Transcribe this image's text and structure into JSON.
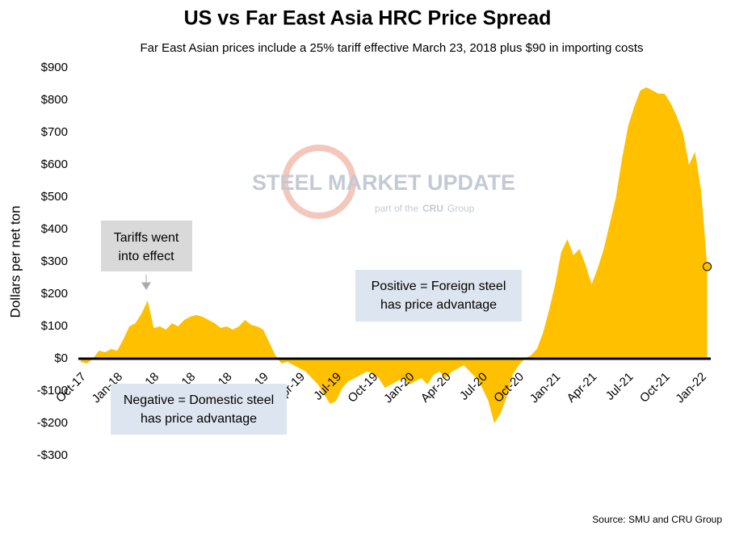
{
  "chart_data": {
    "type": "area",
    "title": "US vs Far East Asia HRC Price Spread",
    "subtitle": "Far East Asian prices include a 25% tariff effective March 23, 2018 plus $90 in importing costs",
    "y_label": "Dollars per net ton",
    "source": "Source: SMU and CRU Group",
    "annotations": [
      "Tariffs went",
      "into effect",
      "Positive = Foreign steel",
      "has price advantage",
      "Negative = Domestic steel",
      "has price advantage"
    ],
    "watermark": [
      "STEEL MARKET UPDATE",
      "part of the",
      "CRU",
      "Group"
    ],
    "color": "#ffc000",
    "categories": [
      "Oct-17",
      null,
      null,
      null,
      null,
      null,
      "Jan-18",
      null,
      null,
      null,
      null,
      null,
      "Apr-18",
      null,
      null,
      null,
      null,
      null,
      "Jul-18",
      null,
      null,
      null,
      null,
      null,
      "Oct-18",
      null,
      null,
      null,
      null,
      null,
      "Jan-19",
      null,
      null,
      null,
      null,
      null,
      "Apr-19",
      null,
      null,
      null,
      null,
      null,
      "Jul-19",
      null,
      null,
      null,
      null,
      null,
      "Oct-19",
      null,
      null,
      null,
      null,
      null,
      "Jan-20",
      null,
      null,
      null,
      null,
      null,
      "Apr-20",
      null,
      null,
      null,
      null,
      null,
      "Jul-20",
      null,
      null,
      null,
      null,
      null,
      "Oct-20",
      null,
      null,
      null,
      null,
      null,
      "Jan-21",
      null,
      null,
      null,
      null,
      null,
      "Apr-21",
      null,
      null,
      null,
      null,
      null,
      "Jul-21",
      null,
      null,
      null,
      null,
      null,
      "Oct-21",
      null,
      null,
      null,
      null,
      null,
      "Jan-22",
      null
    ],
    "values": [
      -10,
      -15,
      0,
      25,
      20,
      30,
      25,
      60,
      100,
      110,
      140,
      180,
      95,
      100,
      90,
      110,
      100,
      120,
      130,
      135,
      130,
      120,
      110,
      95,
      100,
      90,
      100,
      120,
      105,
      100,
      90,
      50,
      10,
      -15,
      -10,
      -20,
      -30,
      -40,
      -60,
      -80,
      -110,
      -140,
      -130,
      -90,
      -70,
      -60,
      -50,
      -40,
      -45,
      -60,
      -90,
      -80,
      -70,
      -60,
      -80,
      -70,
      -60,
      -80,
      -50,
      -40,
      -60,
      -40,
      -30,
      -20,
      -40,
      -60,
      -90,
      -130,
      -200,
      -170,
      -120,
      -50,
      -20,
      0,
      10,
      30,
      80,
      150,
      230,
      330,
      370,
      320,
      340,
      290,
      230,
      280,
      340,
      420,
      500,
      620,
      720,
      780,
      830,
      840,
      830,
      820,
      820,
      790,
      750,
      700,
      600,
      640,
      520,
      285
    ],
    "ylim": [
      -300,
      900
    ],
    "yticks": [
      {
        "value": -300,
        "label": "-$300"
      },
      {
        "value": -200,
        "label": "-$200"
      },
      {
        "value": -100,
        "label": "-$100"
      },
      {
        "value": 0,
        "label": "$0"
      },
      {
        "value": 100,
        "label": "$100"
      },
      {
        "value": 200,
        "label": "$200"
      },
      {
        "value": 300,
        "label": "$300"
      },
      {
        "value": 400,
        "label": "$400"
      },
      {
        "value": 500,
        "label": "$500"
      },
      {
        "value": 600,
        "label": "$600"
      },
      {
        "value": 700,
        "label": "$700"
      },
      {
        "value": 800,
        "label": "$800"
      },
      {
        "value": 900,
        "label": "$900"
      }
    ]
  }
}
